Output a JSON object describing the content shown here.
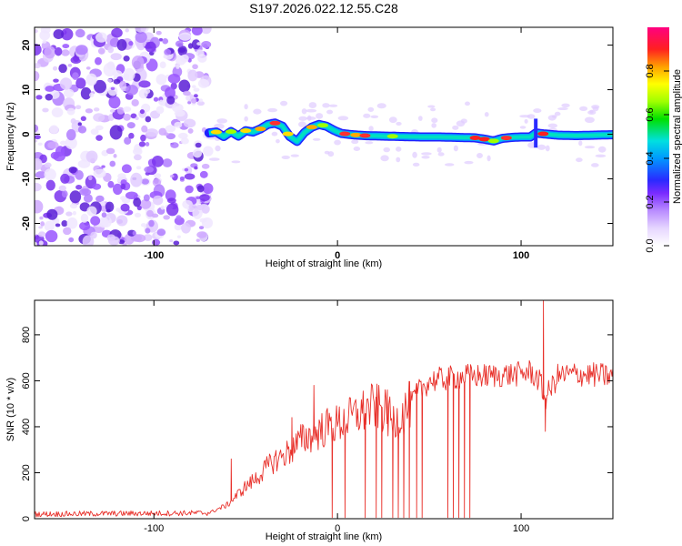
{
  "title": "S197.2026.022.12.55.C28",
  "chart_data": [
    {
      "type": "heatmap",
      "name": "spectrogram",
      "xlabel": "Height of straight line (km)",
      "ylabel": "Frequency (Hz)",
      "xlim": [
        -165,
        150
      ],
      "ylim": [
        -25,
        24
      ],
      "xticks": [
        -100,
        0,
        100
      ],
      "yticks": [
        -20,
        -10,
        0,
        10,
        20
      ],
      "noise_region_x": [
        -165,
        -70
      ],
      "signal_ridge": {
        "x": [
          -70,
          -66,
          -62,
          -58,
          -54,
          -50,
          -46,
          -42,
          -38,
          -34,
          -30,
          -26,
          -22,
          -18,
          -14,
          -10,
          -6,
          -2,
          2,
          8,
          15,
          25,
          35,
          45,
          55,
          65,
          75,
          80,
          85,
          90,
          95,
          100,
          105,
          108,
          112,
          120,
          130,
          140,
          150
        ],
        "y": [
          0.3,
          0.5,
          -0.5,
          0.6,
          -0.4,
          0.8,
          0.5,
          1.2,
          2.2,
          2.5,
          1.8,
          -0.5,
          -1.6,
          0.4,
          1.6,
          2.2,
          1.8,
          0.9,
          0.2,
          -0.1,
          -0.3,
          -0.4,
          -0.5,
          -0.6,
          -0.6,
          -0.7,
          -0.8,
          -1.1,
          -1.5,
          -0.9,
          -0.7,
          -0.6,
          -0.6,
          0.3,
          0.1,
          -0.2,
          -0.3,
          -0.2,
          -0.1
        ]
      },
      "colorbar": {
        "label": "Normalized spectral amplitude",
        "ticks": [
          0.0,
          0.2,
          0.4,
          0.6,
          0.8
        ],
        "tick_labels": [
          "0.0",
          "0.2",
          "0.4",
          "0.6",
          "0.8"
        ],
        "range": [
          0,
          1
        ]
      }
    },
    {
      "type": "line",
      "name": "snr",
      "xlabel": "Height of straight line (km)",
      "ylabel": "SNR (10 * v/v)",
      "xlim": [
        -165,
        150
      ],
      "ylim": [
        0,
        950
      ],
      "xticks": [
        -100,
        0,
        100
      ],
      "yticks": [
        0,
        200,
        400,
        600,
        800
      ],
      "color": "#e8302a",
      "envelope": {
        "x": [
          -165,
          -70,
          -60,
          -55,
          -50,
          -45,
          -40,
          -35,
          -30,
          -25,
          -20,
          -15,
          -10,
          -5,
          0,
          5,
          10,
          15,
          20,
          25,
          30,
          35,
          40,
          45,
          50,
          60,
          70,
          80,
          90,
          100,
          105,
          110,
          113,
          120,
          130,
          140,
          150
        ],
        "y": [
          20,
          25,
          60,
          100,
          140,
          170,
          210,
          250,
          270,
          300,
          340,
          360,
          380,
          400,
          410,
          430,
          450,
          470,
          490,
          470,
          420,
          450,
          500,
          560,
          600,
          610,
          620,
          620,
          625,
          630,
          640,
          600,
          520,
          620,
          630,
          625,
          620
        ]
      },
      "spikes_up": [
        {
          "x": -58,
          "y": 260
        },
        {
          "x": -25,
          "y": 440
        },
        {
          "x": -13,
          "y": 580
        },
        {
          "x": 27,
          "y": 560
        },
        {
          "x": 112,
          "y": 950
        }
      ],
      "dropouts": [
        -3,
        4,
        15,
        21,
        24,
        30,
        33,
        36,
        39,
        43,
        46,
        60,
        63,
        66,
        69,
        72
      ]
    }
  ]
}
